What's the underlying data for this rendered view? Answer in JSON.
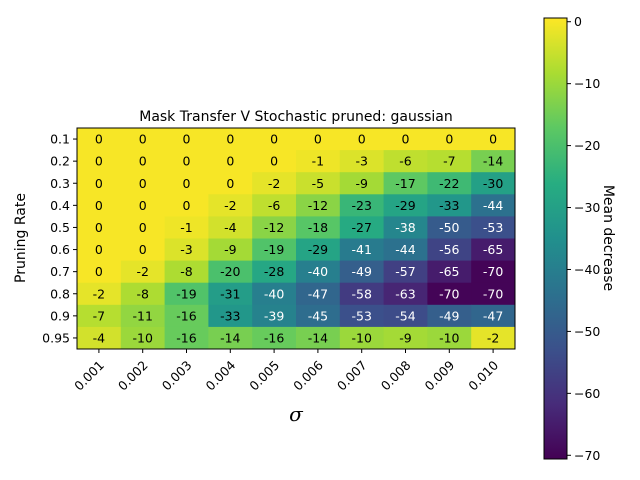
{
  "chart_data": {
    "type": "heatmap",
    "title": "Mask Transfer V Stochastic pruned: gaussian",
    "xlabel": "σ",
    "ylabel": "Pruning Rate",
    "colorbar_label": "Mean decrease",
    "colormap": "viridis",
    "x_categories": [
      "0.001",
      "0.002",
      "0.003",
      "0.004",
      "0.005",
      "0.006",
      "0.007",
      "0.008",
      "0.009",
      "0.010"
    ],
    "y_categories": [
      "0.1",
      "0.2",
      "0.3",
      "0.4",
      "0.5",
      "0.6",
      "0.7",
      "0.8",
      "0.9",
      "0.95"
    ],
    "values": [
      [
        0,
        0,
        0,
        0,
        0,
        0,
        0,
        0,
        0,
        0
      ],
      [
        0,
        0,
        0,
        0,
        0,
        -1,
        -3,
        -6,
        -7,
        -14
      ],
      [
        0,
        0,
        0,
        0,
        -2,
        -5,
        -9,
        -17,
        -22,
        -30
      ],
      [
        0,
        0,
        0,
        -2,
        -6,
        -12,
        -23,
        -29,
        -33,
        -44
      ],
      [
        0,
        0,
        -1,
        -4,
        -12,
        -18,
        -27,
        -38,
        -50,
        -53
      ],
      [
        0,
        0,
        -3,
        -9,
        -19,
        -29,
        -41,
        -44,
        -56,
        -65
      ],
      [
        0,
        -2,
        -8,
        -20,
        -28,
        -40,
        -49,
        -57,
        -65,
        -70
      ],
      [
        -2,
        -8,
        -19,
        -31,
        -40,
        -47,
        -58,
        -63,
        -70,
        -70
      ],
      [
        -7,
        -11,
        -16,
        -33,
        -39,
        -45,
        -53,
        -54,
        -49,
        -47
      ],
      [
        -4,
        -10,
        -16,
        -14,
        -16,
        -14,
        -10,
        -9,
        -10,
        -2
      ]
    ],
    "colorbar_range": [
      -70.6,
      0.6
    ],
    "colorbar_ticks": [
      0,
      -10,
      -20,
      -30,
      -40,
      -50,
      -60,
      -70
    ],
    "colorbar_tick_labels": [
      "0",
      "−10",
      "−20",
      "−30",
      "−40",
      "−50",
      "−60",
      "−70"
    ],
    "grid": false,
    "x_tick_rotation_deg": 45
  }
}
